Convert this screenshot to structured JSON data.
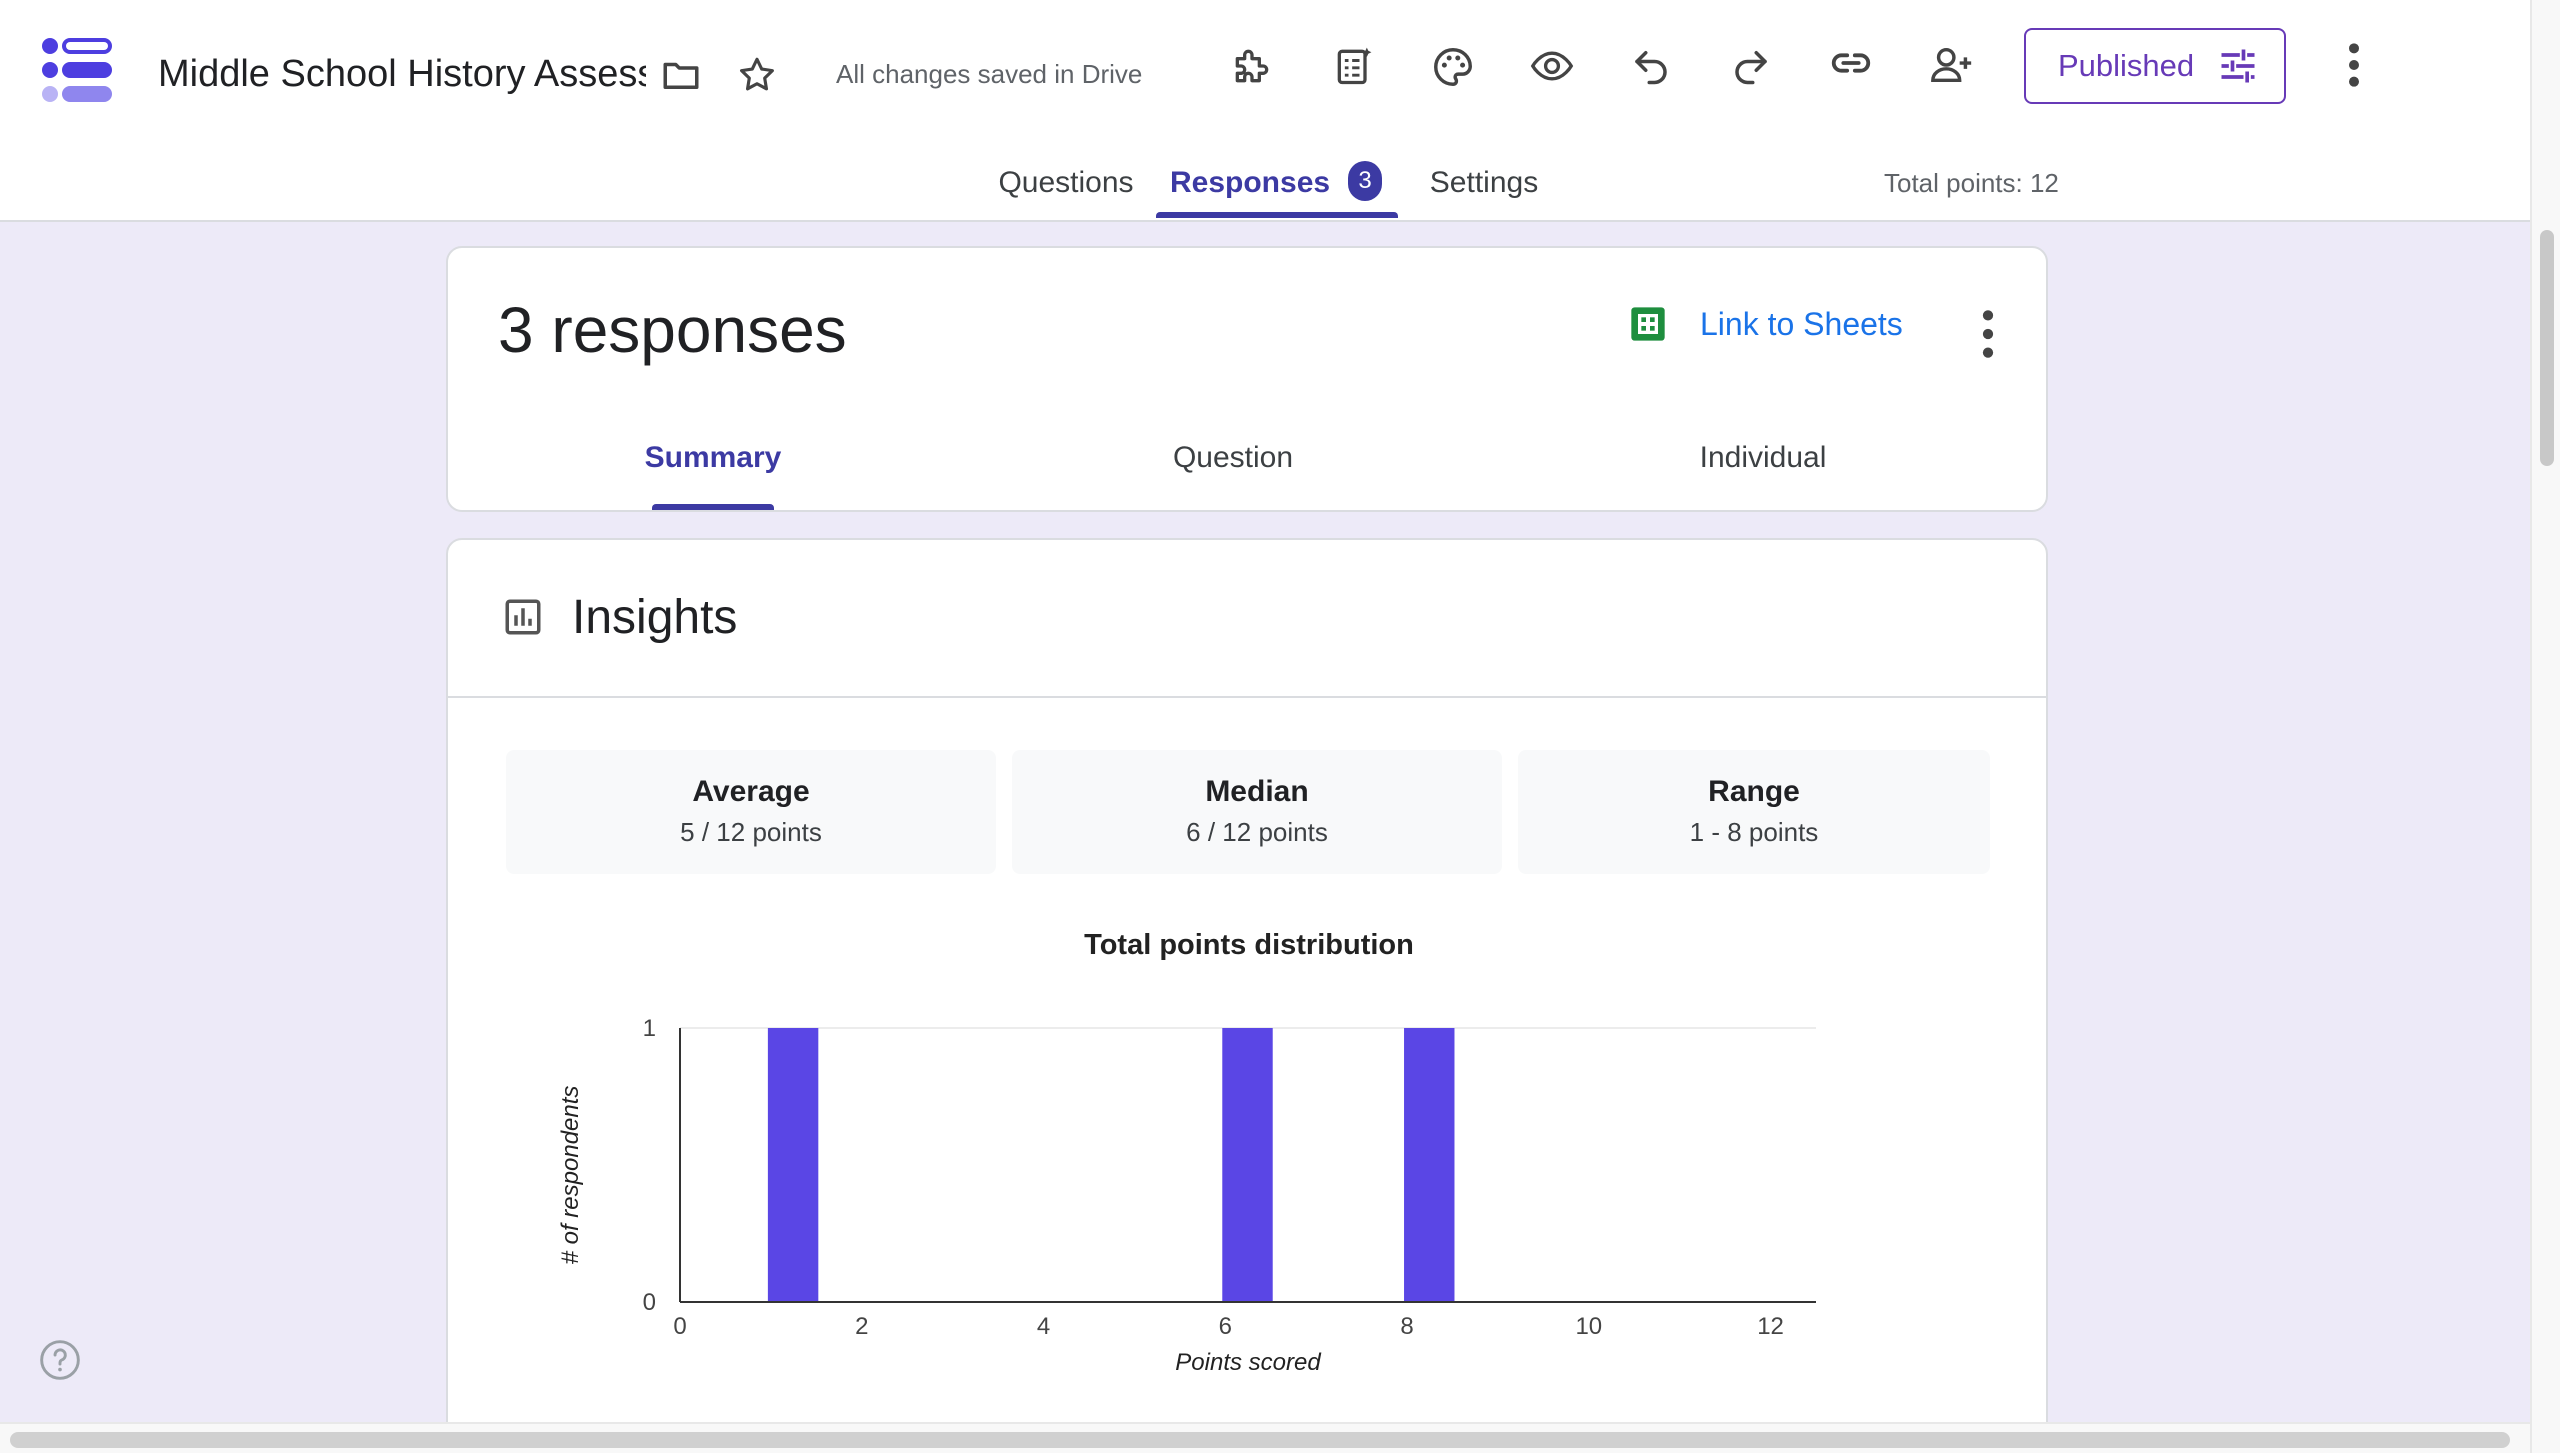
{
  "header": {
    "title": "Middle School History Assessment",
    "save_status": "All changes saved in Drive",
    "publish_label": "Published",
    "icons": [
      "folder-icon",
      "star-icon",
      "addon-icon",
      "import-questions-icon",
      "palette-icon",
      "preview-icon",
      "undo-icon",
      "redo-icon",
      "link-icon",
      "add-collaborator-icon",
      "more-vert-icon"
    ]
  },
  "tabs": {
    "questions": "Questions",
    "responses": "Responses",
    "responses_count": "3",
    "settings": "Settings",
    "total_points": "Total points: 12"
  },
  "responses_card": {
    "title": "3 responses",
    "link_sheets": "Link to Sheets",
    "subtabs": {
      "summary": "Summary",
      "question": "Question",
      "individual": "Individual"
    }
  },
  "insights": {
    "title": "Insights",
    "stats": [
      {
        "label": "Average",
        "value": "5 / 12 points"
      },
      {
        "label": "Median",
        "value": "6 / 12 points"
      },
      {
        "label": "Range",
        "value": "1 - 8 points"
      }
    ]
  },
  "chart_data": {
    "type": "bar",
    "title": "Total points distribution",
    "xlabel": "Points scored",
    "ylabel": "# of respondents",
    "xlim": [
      0,
      12.5
    ],
    "ylim": [
      0,
      1
    ],
    "xticks": [
      0,
      2,
      4,
      6,
      8,
      10,
      12
    ],
    "yticks": [
      0,
      1
    ],
    "grid": true,
    "bars": [
      {
        "x": 1,
        "value": 1
      },
      {
        "x": 6,
        "value": 1
      },
      {
        "x": 8,
        "value": 1
      }
    ],
    "color": "#5a46e5"
  },
  "colors": {
    "accent": "#673ab7",
    "tab_active": "#3c3aa3",
    "link": "#1a73e8",
    "background": "#edeaf8"
  }
}
